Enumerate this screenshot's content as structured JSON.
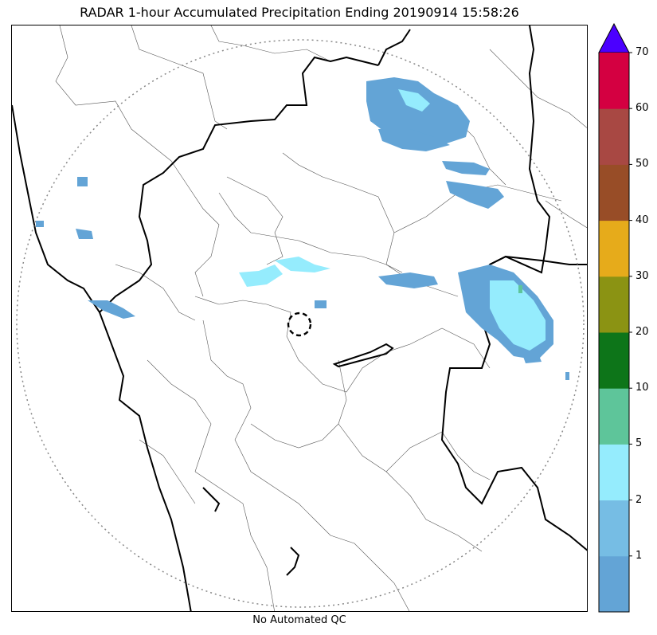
{
  "title": "RADAR 1-hour Accumulated Precipitation Ending 20190914 15:58:26",
  "footer_note": "No Automated QC",
  "colorbar": {
    "extend_max_color": "#4b00ff",
    "bins": [
      {
        "from": 0,
        "to": 1,
        "color": "#63a4d6"
      },
      {
        "from": 1,
        "to": 2,
        "color": "#76bde4"
      },
      {
        "from": 2,
        "to": 5,
        "color": "#95ecfd"
      },
      {
        "from": 5,
        "to": 10,
        "color": "#5ec59a"
      },
      {
        "from": 10,
        "to": 20,
        "color": "#0d7519"
      },
      {
        "from": 20,
        "to": 30,
        "color": "#8b9313"
      },
      {
        "from": 30,
        "to": 40,
        "color": "#e6ab1b"
      },
      {
        "from": 40,
        "to": 50,
        "color": "#984d27"
      },
      {
        "from": 50,
        "to": 60,
        "color": "#a84843"
      },
      {
        "from": 60,
        "to": 70,
        "color": "#d40041"
      }
    ],
    "tick_labels": [
      "1",
      "2",
      "5",
      "10",
      "20",
      "30",
      "40",
      "50",
      "60",
      "70"
    ]
  }
}
